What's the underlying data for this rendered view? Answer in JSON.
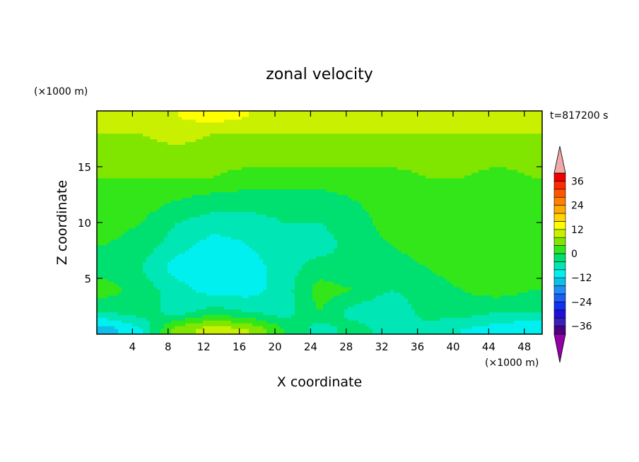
{
  "chart_data": {
    "type": "heatmap",
    "title": "zonal velocity",
    "xlabel": "X coordinate",
    "ylabel": "Z coordinate",
    "x_unit": "(×1000 m)",
    "y_unit": "(×1000 m)",
    "time_label": "t=817200 s",
    "xlim": [
      0,
      50
    ],
    "ylim": [
      0,
      20
    ],
    "x_ticks": [
      4,
      8,
      12,
      16,
      20,
      24,
      28,
      32,
      36,
      40,
      44,
      48
    ],
    "y_ticks": [
      5,
      10,
      15
    ],
    "colorbar": {
      "levels": [
        -40,
        -36,
        -32,
        -28,
        -24,
        -20,
        -16,
        -12,
        -8,
        -4,
        0,
        4,
        8,
        12,
        16,
        20,
        24,
        28,
        32,
        36,
        40
      ],
      "tick_labels": [
        "36",
        "24",
        "12",
        "0",
        "−12",
        "−24",
        "−36"
      ],
      "tick_values": [
        36,
        24,
        12,
        0,
        -12,
        -24,
        -36
      ],
      "colors": [
        "#4b0082",
        "#3a1fb8",
        "#1f10d8",
        "#1230f0",
        "#1a5ef5",
        "#1f8df5",
        "#10bfe8",
        "#00f0f0",
        "#00e6b4",
        "#00e070",
        "#33e61a",
        "#80e600",
        "#c8f000",
        "#ffff00",
        "#ffd400",
        "#ffaa00",
        "#ff8000",
        "#ff5500",
        "#ff2a00",
        "#ee0000"
      ],
      "under_color": "#9400a8",
      "over_color": "#f0a8a8"
    },
    "field": {
      "z": [
        0.5,
        2,
        4,
        6,
        8,
        10,
        12,
        14,
        16,
        18,
        19.5
      ],
      "x": [
        1,
        5,
        9,
        13,
        17,
        21,
        25,
        29,
        33,
        37,
        41,
        45,
        49
      ],
      "values": [
        [
          -14,
          -8,
          6,
          10,
          8,
          0,
          -6,
          -2,
          -6,
          -6,
          -8,
          -10,
          -12
        ],
        [
          -4,
          -2,
          -6,
          -2,
          -4,
          -6,
          0,
          -6,
          -8,
          -2,
          -2,
          -4,
          -4
        ],
        [
          2,
          -2,
          -6,
          -10,
          -10,
          -6,
          2,
          0,
          -4,
          -2,
          0,
          2,
          0
        ],
        [
          -2,
          -4,
          -10,
          -12,
          -10,
          -6,
          -2,
          -4,
          -2,
          0,
          2,
          4,
          2
        ],
        [
          0,
          -2,
          -6,
          -10,
          -8,
          -6,
          -6,
          -2,
          0,
          2,
          4,
          2,
          2
        ],
        [
          2,
          0,
          -4,
          -6,
          -6,
          -4,
          -4,
          -2,
          2,
          2,
          2,
          2,
          2
        ],
        [
          2,
          2,
          0,
          -2,
          -2,
          -2,
          -2,
          0,
          2,
          2,
          2,
          2,
          2
        ],
        [
          4,
          4,
          4,
          4,
          2,
          2,
          2,
          2,
          2,
          4,
          4,
          2,
          4
        ],
        [
          6,
          6,
          6,
          6,
          6,
          6,
          6,
          6,
          6,
          6,
          6,
          6,
          6
        ],
        [
          8,
          8,
          10,
          8,
          8,
          8,
          8,
          8,
          8,
          8,
          8,
          8,
          8
        ],
        [
          10,
          10,
          12,
          14,
          12,
          10,
          10,
          10,
          10,
          10,
          10,
          10,
          10
        ]
      ]
    }
  }
}
